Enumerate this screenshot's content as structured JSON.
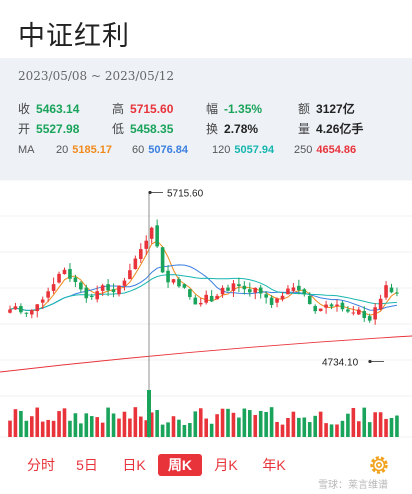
{
  "header": {
    "title": "中证红利"
  },
  "info": {
    "date_range": "2023/05/08 ~ 2023/05/12",
    "row1": [
      {
        "label": "收",
        "value": "5463.14",
        "tone": "down"
      },
      {
        "label": "高",
        "value": "5715.60",
        "tone": "up"
      },
      {
        "label": "幅",
        "value": "-1.35%",
        "tone": "down"
      },
      {
        "label": "额",
        "value": "3127亿",
        "tone": "neutral"
      }
    ],
    "row2": [
      {
        "label": "开",
        "value": "5527.98",
        "tone": "down"
      },
      {
        "label": "低",
        "value": "5458.35",
        "tone": "down"
      },
      {
        "label": "换",
        "value": "2.78%",
        "tone": "neutral"
      },
      {
        "label": "量",
        "value": "4.26亿手",
        "tone": "neutral"
      }
    ],
    "ma": {
      "label": "MA",
      "items": [
        {
          "label": "20",
          "value": "5185.17",
          "color": "#f08a1c"
        },
        {
          "label": "60",
          "value": "5076.84",
          "color": "#3b7fe0"
        },
        {
          "label": "120",
          "value": "5057.94",
          "color": "#17b6b0"
        },
        {
          "label": "250",
          "value": "4654.86",
          "color": "#e8333a"
        }
      ]
    }
  },
  "chart": {
    "high_label": "5715.60",
    "low_label": "4734.10",
    "up_color": "#e8333a",
    "down_color": "#1aa35a"
  },
  "tabs": [
    {
      "label": "分时",
      "active": false
    },
    {
      "label": "5日",
      "active": false
    },
    {
      "label": "日K",
      "active": false
    },
    {
      "label": "周K",
      "active": true
    },
    {
      "label": "月K",
      "active": false
    },
    {
      "label": "年K",
      "active": false
    }
  ],
  "settings_icon": "gear-icon",
  "watermark": "雪球：莱言维谱"
}
